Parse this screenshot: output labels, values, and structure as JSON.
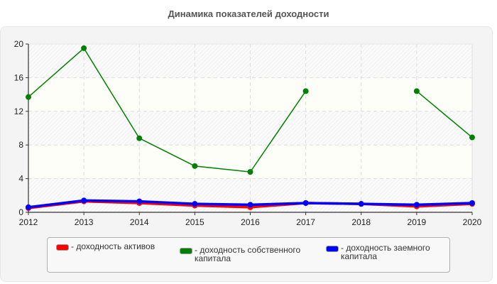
{
  "title": "Динамика показателей доходности",
  "legend": {
    "items": [
      {
        "label": "- доходность активов",
        "color": "#ff0000"
      },
      {
        "label": "- доходность собственного\nкапитала",
        "color": "#008000"
      },
      {
        "label": "- доходность заемного\nкапитала",
        "color": "#0000ff"
      }
    ]
  },
  "chart_data": {
    "type": "line",
    "title": "Динамика показателей доходности",
    "xlabel": "",
    "ylabel": "",
    "categories": [
      "2012",
      "2013",
      "2014",
      "2015",
      "2016",
      "2017",
      "2018",
      "2019",
      "2020"
    ],
    "ylim": [
      0,
      20
    ],
    "yticks": [
      0,
      4,
      8,
      12,
      16,
      20
    ],
    "grid": true,
    "legend_position": "bottom",
    "series": [
      {
        "name": "доходность активов",
        "color": "#ff0000",
        "values": [
          0.5,
          1.3,
          1.1,
          0.8,
          0.6,
          1.1,
          1.0,
          0.7,
          1.0
        ]
      },
      {
        "name": "доходность собственного капитала",
        "color": "#008000",
        "values": [
          13.7,
          19.5,
          8.8,
          5.5,
          4.8,
          14.4,
          null,
          14.4,
          8.9
        ]
      },
      {
        "name": "доходность заемного капитала",
        "color": "#0000ff",
        "values": [
          0.6,
          1.4,
          1.3,
          1.0,
          0.9,
          1.1,
          1.0,
          0.9,
          1.1
        ]
      }
    ]
  }
}
